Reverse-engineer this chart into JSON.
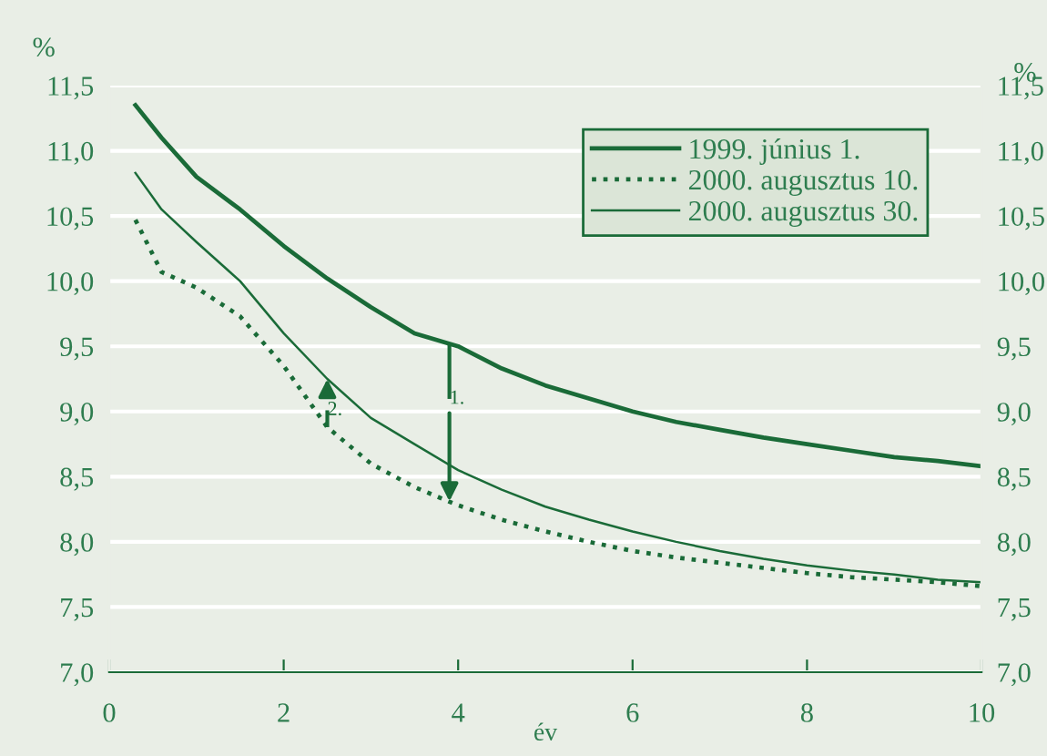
{
  "chart_data": {
    "type": "line",
    "xlabel": "év",
    "ylabel": "%",
    "y2label": "%",
    "xlim": [
      0,
      10
    ],
    "xticks": [
      0,
      2,
      4,
      6,
      8,
      10
    ],
    "ylim": [
      7.0,
      11.5
    ],
    "yticks": [
      {
        "value": 7.0,
        "label": "7,0"
      },
      {
        "value": 7.5,
        "label": "7,5"
      },
      {
        "value": 8.0,
        "label": "8,0"
      },
      {
        "value": 8.5,
        "label": "8,5"
      },
      {
        "value": 9.0,
        "label": "9,0"
      },
      {
        "value": 9.5,
        "label": "9,5"
      },
      {
        "value": 10.0,
        "label": "10,0"
      },
      {
        "value": 10.5,
        "label": "10,5"
      },
      {
        "value": 11.0,
        "label": "11,0"
      },
      {
        "value": 11.5,
        "label": "11,5"
      }
    ],
    "y2lim": [
      7.0,
      11.5
    ],
    "y2ticks": [
      {
        "value": 7.0,
        "label": "7,0"
      },
      {
        "value": 7.5,
        "label": "7,5"
      },
      {
        "value": 8.0,
        "label": "8,0"
      },
      {
        "value": 8.5,
        "label": "8,5"
      },
      {
        "value": 9.0,
        "label": "9,0"
      },
      {
        "value": 9.5,
        "label": "9,5"
      },
      {
        "value": 10.0,
        "label": "10,0"
      },
      {
        "value": 10.5,
        "label": "10,5"
      },
      {
        "value": 11.0,
        "label": "11,0"
      },
      {
        "value": 11.5,
        "label": "11,5"
      }
    ],
    "x": [
      0.3,
      0.6,
      1,
      1.5,
      2,
      2.5,
      3,
      3.5,
      4,
      4.5,
      5,
      5.5,
      6,
      6.5,
      7,
      7.5,
      8,
      8.5,
      9,
      9.5,
      10
    ],
    "series": [
      {
        "name": "1999. június 1.",
        "color": "#1a6b38",
        "line_style": "solid",
        "values": [
          11.35,
          11.1,
          10.8,
          10.55,
          10.27,
          10.02,
          9.8,
          9.6,
          9.5,
          9.33,
          9.2,
          9.1,
          9.0,
          8.92,
          8.86,
          8.8,
          8.75,
          8.7,
          8.65,
          8.62,
          8.58
        ]
      },
      {
        "name": "2000. augusztus 10.",
        "color": "#1a6b38",
        "line_style": "dotted",
        "values": [
          10.47,
          10.07,
          9.95,
          9.73,
          9.35,
          8.88,
          8.6,
          8.42,
          8.28,
          8.17,
          8.08,
          8.0,
          7.93,
          7.88,
          7.84,
          7.8,
          7.76,
          7.73,
          7.71,
          7.69,
          7.66
        ]
      },
      {
        "name": "2000. augusztus 30.",
        "color": "#1a6b38",
        "line_style": "solid",
        "values": [
          10.83,
          10.55,
          10.3,
          10.0,
          9.6,
          9.25,
          8.95,
          8.75,
          8.55,
          8.4,
          8.27,
          8.17,
          8.08,
          8.0,
          7.93,
          7.87,
          7.82,
          7.78,
          7.75,
          7.71,
          7.69
        ]
      }
    ],
    "annotations": [
      {
        "text": "1.",
        "x": 3.9,
        "y": 8.31
      },
      {
        "text": "2.",
        "x": 2.5,
        "y": 9.25
      }
    ],
    "grid": "y",
    "legend": "top right",
    "marker": "none"
  }
}
